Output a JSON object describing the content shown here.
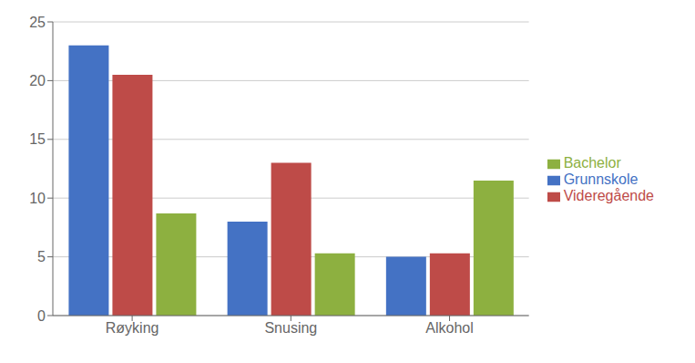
{
  "chart_data": {
    "type": "bar",
    "categories": [
      "Røyking",
      "Snusing",
      "Alkohol"
    ],
    "series": [
      {
        "name": "Grunnskole",
        "color": "#4472C4",
        "values": [
          23,
          8,
          5
        ]
      },
      {
        "name": "Videregående",
        "color": "#BE4B48",
        "values": [
          20.5,
          13,
          5.3
        ]
      },
      {
        "name": "Bachelor",
        "color": "#8DB040",
        "values": [
          8.7,
          5.3,
          11.5
        ]
      }
    ],
    "ylim": [
      0,
      25
    ],
    "yticks": [
      0,
      5,
      10,
      15,
      20,
      25
    ],
    "grid": true,
    "legend": "right"
  }
}
